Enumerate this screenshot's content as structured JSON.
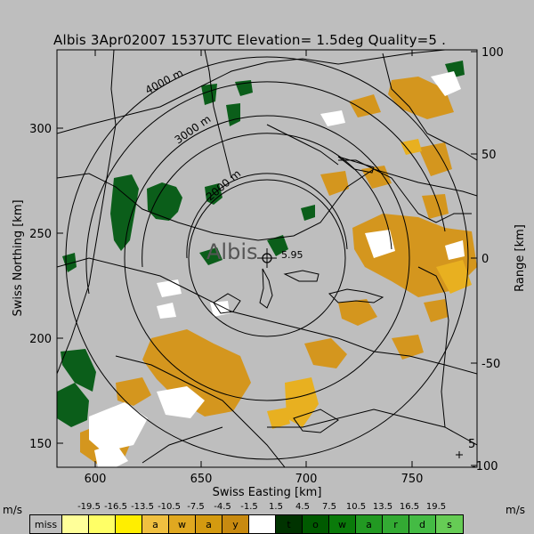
{
  "title": "Albis 3Apr02007 1537UTC Elevation= 1.5deg Quality=5 .",
  "station_label": "Albis",
  "station_number": "5.95",
  "corner_number": "5",
  "altitude_labels": [
    "4000 m",
    "3000 m",
    "2000 m"
  ],
  "x_axis": {
    "label": "Swiss Easting [km]",
    "ticks": [
      "600",
      "650",
      "700",
      "750"
    ]
  },
  "y_axis": {
    "label": "Swiss Northing [km]",
    "ticks": [
      "300",
      "250",
      "200",
      "150"
    ]
  },
  "y2_axis": {
    "label": "Range [km]",
    "ticks": [
      "100",
      "50",
      "0",
      "-50",
      "-100"
    ]
  },
  "legend": {
    "unit": "m/s",
    "values": [
      "-19.5",
      "-16.5",
      "-13.5",
      "-10.5",
      "-7.5",
      "-4.5",
      "-1.5",
      "1.5",
      "4.5",
      "7.5",
      "10.5",
      "13.5",
      "16.5",
      "19.5"
    ],
    "bins": [
      {
        "label": "miss",
        "color": "#bebebe"
      },
      {
        "label": "",
        "color": "#ffff99"
      },
      {
        "label": "",
        "color": "#ffff66"
      },
      {
        "label": "",
        "color": "#ffee00"
      },
      {
        "label": "a",
        "color": "#f0c040"
      },
      {
        "label": "w",
        "color": "#e0a820"
      },
      {
        "label": "a",
        "color": "#d49a10"
      },
      {
        "label": "y",
        "color": "#c88a10"
      },
      {
        "label": "",
        "color": "#ffffff"
      },
      {
        "label": "t",
        "color": "#003300"
      },
      {
        "label": "o",
        "color": "#005a00"
      },
      {
        "label": "w",
        "color": "#0a7a0a"
      },
      {
        "label": "a",
        "color": "#229922"
      },
      {
        "label": "r",
        "color": "#33aa33"
      },
      {
        "label": "d",
        "color": "#44bb44"
      },
      {
        "label": "s",
        "color": "#66cc55"
      }
    ]
  },
  "colors": {
    "background": "#bebebe",
    "approach_dark_green": "#0b5e1a",
    "receding_orange": "#d4961e",
    "near_zero_white": "#ffffff",
    "amber": "#e8b020"
  }
}
